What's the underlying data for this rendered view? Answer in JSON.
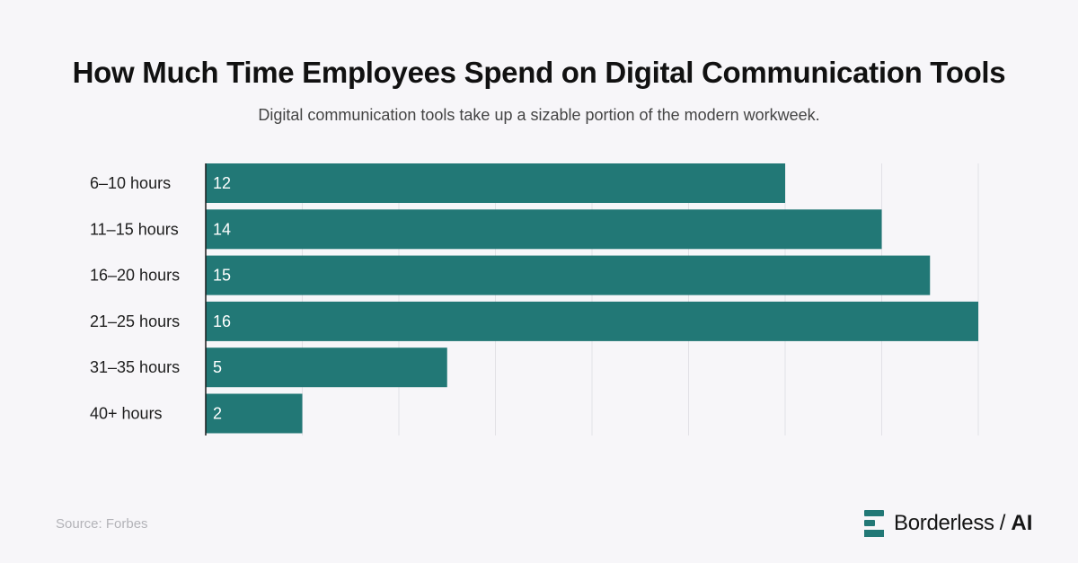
{
  "title": "How Much Time Employees Spend on Digital Communication Tools",
  "subtitle": "Digital communication tools take up a sizable portion of the modern workweek.",
  "source": "Source: Forbes",
  "brand": {
    "name": "Borderless",
    "separator": "/",
    "suffix": "AI",
    "logo_icon": "borderless-logo-icon"
  },
  "colors": {
    "bar": "#227876",
    "background": "#f7f6f9",
    "grid": "#e2e1e6"
  },
  "chart_data": {
    "type": "bar",
    "orientation": "horizontal",
    "categories": [
      "6–10 hours",
      "11–15 hours",
      "16–20 hours",
      "21–25 hours",
      "31–35 hours",
      "40+ hours"
    ],
    "values": [
      12,
      14,
      15,
      16,
      5,
      2
    ],
    "xlim": [
      0,
      16
    ],
    "grid": true,
    "data_labels": true
  }
}
